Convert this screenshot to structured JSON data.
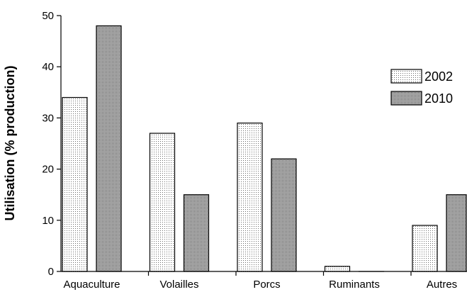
{
  "chart_data": {
    "type": "bar",
    "title": "",
    "xlabel": "",
    "ylabel": "Utilisation (% production)",
    "categories": [
      "Aquaculture",
      "Volailles",
      "Porcs",
      "Ruminants",
      "Autres"
    ],
    "series": [
      {
        "name": "2002",
        "values": [
          34,
          27,
          29,
          1,
          9
        ],
        "pattern": "fine-dots",
        "color": "#f2f2f2"
      },
      {
        "name": "2010",
        "values": [
          48,
          15,
          22,
          0,
          15
        ],
        "pattern": "dense-dots",
        "color": "#b8b8b8"
      }
    ],
    "ylim": [
      0,
      50
    ],
    "yticks": [
      0,
      10,
      20,
      30,
      40,
      50
    ],
    "grid": false,
    "legend_position": "right"
  }
}
